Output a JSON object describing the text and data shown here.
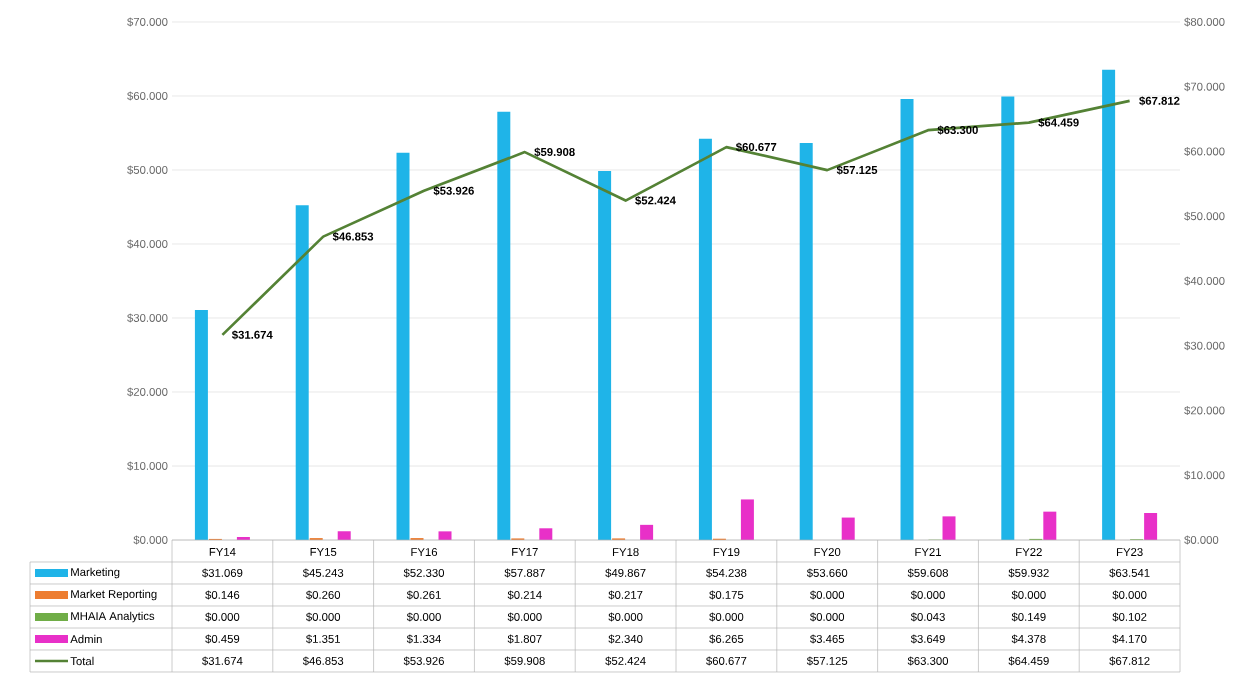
{
  "chart_data": {
    "type": "bar",
    "categories": [
      "FY14",
      "FY15",
      "FY16",
      "FY17",
      "FY18",
      "FY19",
      "FY20",
      "FY21",
      "FY22",
      "FY23"
    ],
    "series": [
      {
        "name": "Marketing",
        "color": "#1fb4e8",
        "values": [
          31.069,
          45.243,
          52.33,
          57.887,
          49.867,
          54.238,
          53.66,
          59.608,
          59.932,
          63.541
        ],
        "value_labels": [
          "$31.069",
          "$45.243",
          "$52.330",
          "$57.887",
          "$49.867",
          "$54.238",
          "$53.660",
          "$59.608",
          "$59.932",
          "$63.541"
        ]
      },
      {
        "name": "Market Reporting",
        "color": "#ed7d31",
        "values": [
          0.146,
          0.26,
          0.261,
          0.214,
          0.217,
          0.175,
          0.0,
          0.0,
          0.0,
          0.0
        ],
        "value_labels": [
          "$0.146",
          "$0.260",
          "$0.261",
          "$0.214",
          "$0.217",
          "$0.175",
          "$0.000",
          "$0.000",
          "$0.000",
          "$0.000"
        ]
      },
      {
        "name": "MHAIA Analytics",
        "color": "#70ad47",
        "values": [
          0.0,
          0.0,
          0.0,
          0.0,
          0.0,
          0.0,
          0.0,
          0.043,
          0.149,
          0.102
        ],
        "value_labels": [
          "$0.000",
          "$0.000",
          "$0.000",
          "$0.000",
          "$0.000",
          "$0.000",
          "$0.000",
          "$0.043",
          "$0.149",
          "$0.102"
        ]
      },
      {
        "name": "Admin",
        "color": "#e830c8",
        "axis": "y2",
        "values": [
          0.459,
          1.351,
          1.334,
          1.807,
          2.34,
          6.265,
          3.465,
          3.649,
          4.378,
          4.17
        ],
        "value_labels": [
          "$0.459",
          "$1.351",
          "$1.334",
          "$1.807",
          "$2.340",
          "$6.265",
          "$3.465",
          "$3.649",
          "$4.378",
          "$4.170"
        ]
      },
      {
        "name": "Total",
        "color": "#548235",
        "type": "line",
        "axis": "y2",
        "values": [
          31.674,
          46.853,
          53.926,
          59.908,
          52.424,
          60.677,
          57.125,
          63.3,
          64.459,
          67.812
        ],
        "value_labels": [
          "$31.674",
          "$46.853",
          "$53.926",
          "$59.908",
          "$52.424",
          "$60.677",
          "$57.125",
          "$63.300",
          "$64.459",
          "$67.812"
        ]
      }
    ],
    "ylim": [
      0,
      70
    ],
    "yticks": [
      {
        "value": 0,
        "label": "$0.000"
      },
      {
        "value": 10,
        "label": "$10.000"
      },
      {
        "value": 20,
        "label": "$20.000"
      },
      {
        "value": 30,
        "label": "$30.000"
      },
      {
        "value": 40,
        "label": "$40.000"
      },
      {
        "value": 50,
        "label": "$50.000"
      },
      {
        "value": 60,
        "label": "$60.000"
      },
      {
        "value": 70,
        "label": "$70.000"
      }
    ],
    "y2lim": [
      0,
      80
    ],
    "y2ticks": [
      {
        "value": 0,
        "label": "$0.000"
      },
      {
        "value": 10,
        "label": "$10.000"
      },
      {
        "value": 20,
        "label": "$20.000"
      },
      {
        "value": 30,
        "label": "$30.000"
      },
      {
        "value": 40,
        "label": "$40.000"
      },
      {
        "value": 50,
        "label": "$50.000"
      },
      {
        "value": 60,
        "label": "$60.000"
      },
      {
        "value": 70,
        "label": "$70.000"
      },
      {
        "value": 80,
        "label": "$80.000"
      }
    ],
    "grid": "y",
    "legend": "bottom"
  }
}
